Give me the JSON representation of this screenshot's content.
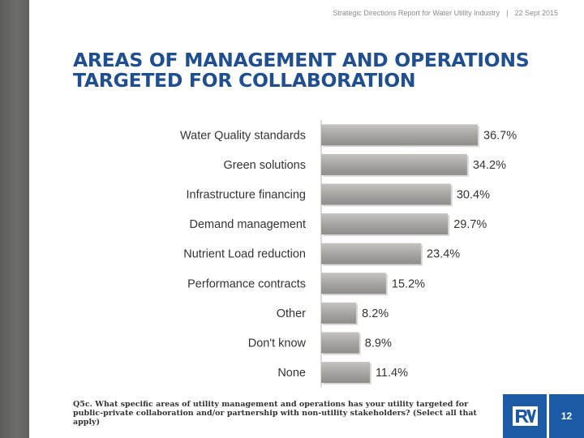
{
  "header": {
    "report": "Strategic Directions Report for Water Utility Industry",
    "separator": "|",
    "date": "22 Sept 2015"
  },
  "title": {
    "line1": "AREAS OF MANAGEMENT AND OPERATIONS",
    "line2": "TARGETED FOR COLLABORATION"
  },
  "chart_data": {
    "type": "bar",
    "orientation": "horizontal",
    "categories": [
      "Water Quality standards",
      "Green solutions",
      "Infrastructure financing",
      "Demand management",
      "Nutrient Load reduction",
      "Performance contracts",
      "Other",
      "Don't know",
      "None"
    ],
    "values": [
      36.7,
      34.2,
      30.4,
      29.7,
      23.4,
      15.2,
      8.2,
      8.9,
      11.4
    ],
    "value_labels": [
      "36.7%",
      "34.2%",
      "30.4%",
      "29.7%",
      "23.4%",
      "15.2%",
      "8.2%",
      "8.9%",
      "11.4%"
    ],
    "xlim": [
      0,
      45
    ],
    "grid": false,
    "bar_color": "#a6a5a2"
  },
  "footnote": "Q5c. What specific areas of utility management and operations has your utility targeted for public-private collaboration and/or partnership with non-utility stakeholders? (Select all that apply)",
  "page_number": "12",
  "colors": {
    "title": "#1f4f8f",
    "brand_blue": "#1d5aa6",
    "sidebar": "#6a6b67"
  }
}
